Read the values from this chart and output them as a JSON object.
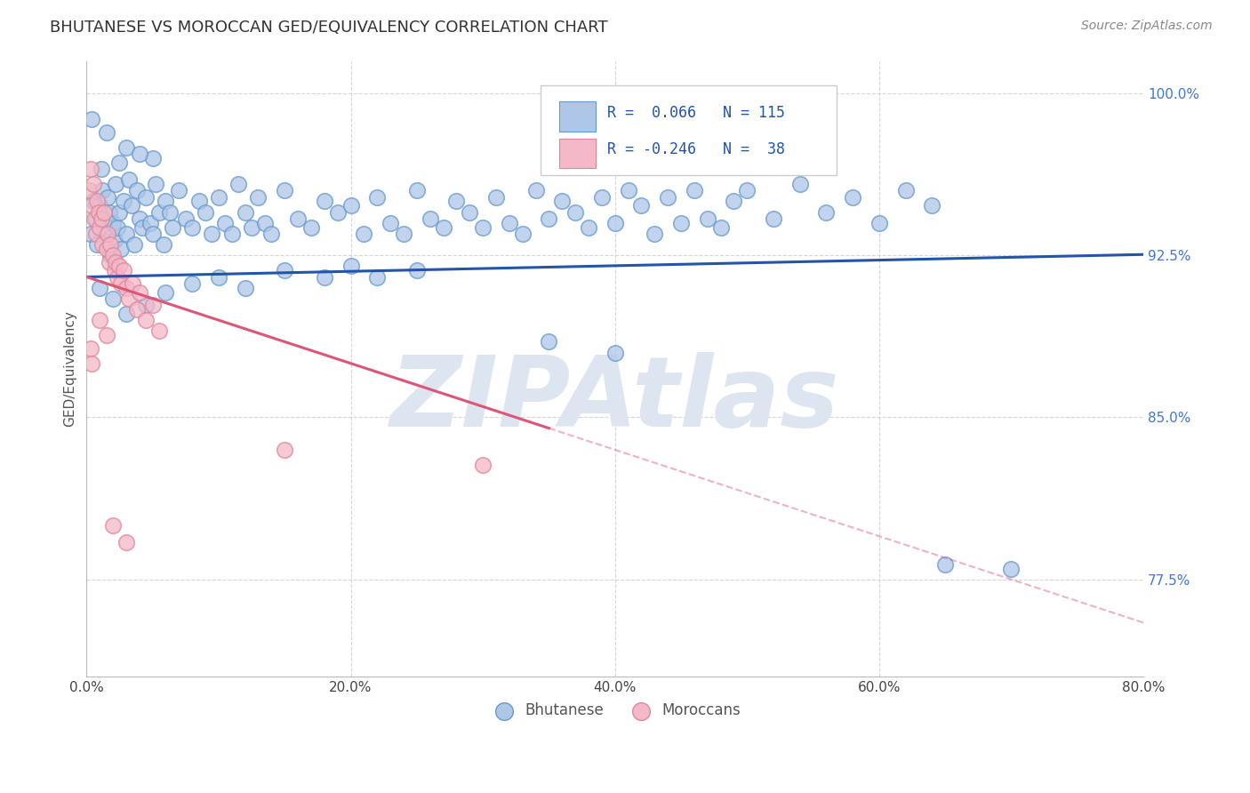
{
  "title": "BHUTANESE VS MOROCCAN GED/EQUIVALENCY CORRELATION CHART",
  "source": "Source: ZipAtlas.com",
  "ylabel": "GED/Equivalency",
  "xlim": [
    0.0,
    80.0
  ],
  "ylim": [
    73.0,
    101.5
  ],
  "yticks": [
    77.5,
    85.0,
    92.5,
    100.0
  ],
  "ytick_labels": [
    "77.5%",
    "85.0%",
    "92.5%",
    "100.0%"
  ],
  "xticks": [
    0.0,
    20.0,
    40.0,
    60.0,
    80.0
  ],
  "xtick_labels": [
    "0.0%",
    "20.0%",
    "40.0%",
    "60.0%",
    "80.0%"
  ],
  "blue_color": "#aec6e8",
  "blue_edge": "#6699cc",
  "pink_color": "#f4b8c8",
  "pink_edge": "#dd8899",
  "trend_blue": "#2255aa",
  "trend_pink": "#dd5577",
  "background": "#ffffff",
  "grid_color": "#cccccc",
  "watermark": "ZIPAtlas",
  "watermark_color": "#dde6f0",
  "legend_box_color": "#f5f5f5",
  "legend_border": "#cccccc",
  "blue_scatter": [
    [
      0.3,
      93.5
    ],
    [
      0.5,
      95.0
    ],
    [
      0.7,
      94.2
    ],
    [
      0.8,
      93.0
    ],
    [
      1.0,
      94.8
    ],
    [
      1.1,
      96.5
    ],
    [
      1.2,
      95.5
    ],
    [
      1.3,
      94.0
    ],
    [
      1.5,
      93.5
    ],
    [
      1.6,
      95.2
    ],
    [
      1.7,
      94.5
    ],
    [
      1.8,
      92.5
    ],
    [
      2.0,
      94.0
    ],
    [
      2.1,
      93.2
    ],
    [
      2.2,
      95.8
    ],
    [
      2.3,
      93.8
    ],
    [
      2.5,
      94.5
    ],
    [
      2.6,
      92.8
    ],
    [
      2.8,
      95.0
    ],
    [
      3.0,
      93.5
    ],
    [
      3.2,
      96.0
    ],
    [
      3.4,
      94.8
    ],
    [
      3.6,
      93.0
    ],
    [
      3.8,
      95.5
    ],
    [
      4.0,
      94.2
    ],
    [
      4.2,
      93.8
    ],
    [
      4.5,
      95.2
    ],
    [
      4.8,
      94.0
    ],
    [
      5.0,
      93.5
    ],
    [
      5.2,
      95.8
    ],
    [
      5.5,
      94.5
    ],
    [
      5.8,
      93.0
    ],
    [
      6.0,
      95.0
    ],
    [
      6.3,
      94.5
    ],
    [
      6.5,
      93.8
    ],
    [
      7.0,
      95.5
    ],
    [
      7.5,
      94.2
    ],
    [
      8.0,
      93.8
    ],
    [
      8.5,
      95.0
    ],
    [
      9.0,
      94.5
    ],
    [
      9.5,
      93.5
    ],
    [
      10.0,
      95.2
    ],
    [
      10.5,
      94.0
    ],
    [
      11.0,
      93.5
    ],
    [
      11.5,
      95.8
    ],
    [
      12.0,
      94.5
    ],
    [
      12.5,
      93.8
    ],
    [
      13.0,
      95.2
    ],
    [
      13.5,
      94.0
    ],
    [
      14.0,
      93.5
    ],
    [
      15.0,
      95.5
    ],
    [
      16.0,
      94.2
    ],
    [
      17.0,
      93.8
    ],
    [
      18.0,
      95.0
    ],
    [
      19.0,
      94.5
    ],
    [
      20.0,
      94.8
    ],
    [
      21.0,
      93.5
    ],
    [
      22.0,
      95.2
    ],
    [
      23.0,
      94.0
    ],
    [
      24.0,
      93.5
    ],
    [
      25.0,
      95.5
    ],
    [
      26.0,
      94.2
    ],
    [
      27.0,
      93.8
    ],
    [
      28.0,
      95.0
    ],
    [
      29.0,
      94.5
    ],
    [
      30.0,
      93.8
    ],
    [
      31.0,
      95.2
    ],
    [
      32.0,
      94.0
    ],
    [
      33.0,
      93.5
    ],
    [
      34.0,
      95.5
    ],
    [
      35.0,
      94.2
    ],
    [
      36.0,
      95.0
    ],
    [
      37.0,
      94.5
    ],
    [
      38.0,
      93.8
    ],
    [
      39.0,
      95.2
    ],
    [
      40.0,
      94.0
    ],
    [
      41.0,
      95.5
    ],
    [
      42.0,
      94.8
    ],
    [
      43.0,
      93.5
    ],
    [
      44.0,
      95.2
    ],
    [
      45.0,
      94.0
    ],
    [
      46.0,
      95.5
    ],
    [
      47.0,
      94.2
    ],
    [
      48.0,
      93.8
    ],
    [
      49.0,
      95.0
    ],
    [
      50.0,
      95.5
    ],
    [
      52.0,
      94.2
    ],
    [
      54.0,
      95.8
    ],
    [
      56.0,
      94.5
    ],
    [
      58.0,
      95.2
    ],
    [
      60.0,
      94.0
    ],
    [
      62.0,
      95.5
    ],
    [
      64.0,
      94.8
    ],
    [
      0.4,
      98.8
    ],
    [
      1.5,
      98.2
    ],
    [
      3.0,
      97.5
    ],
    [
      5.0,
      97.0
    ],
    [
      2.5,
      96.8
    ],
    [
      4.0,
      97.2
    ],
    [
      65.0,
      78.2
    ],
    [
      70.0,
      78.0
    ],
    [
      1.0,
      91.0
    ],
    [
      2.0,
      90.5
    ],
    [
      3.0,
      89.8
    ],
    [
      4.5,
      90.2
    ],
    [
      6.0,
      90.8
    ],
    [
      8.0,
      91.2
    ],
    [
      10.0,
      91.5
    ],
    [
      12.0,
      91.0
    ],
    [
      15.0,
      91.8
    ],
    [
      18.0,
      91.5
    ],
    [
      20.0,
      92.0
    ],
    [
      22.0,
      91.5
    ],
    [
      25.0,
      91.8
    ],
    [
      35.0,
      88.5
    ],
    [
      40.0,
      88.0
    ]
  ],
  "pink_scatter": [
    [
      0.2,
      95.5
    ],
    [
      0.3,
      96.5
    ],
    [
      0.4,
      94.8
    ],
    [
      0.5,
      95.8
    ],
    [
      0.6,
      94.2
    ],
    [
      0.7,
      93.5
    ],
    [
      0.8,
      95.0
    ],
    [
      0.9,
      94.5
    ],
    [
      1.0,
      93.8
    ],
    [
      1.1,
      94.2
    ],
    [
      1.2,
      93.0
    ],
    [
      1.3,
      94.5
    ],
    [
      1.5,
      92.8
    ],
    [
      1.6,
      93.5
    ],
    [
      1.7,
      92.2
    ],
    [
      1.8,
      93.0
    ],
    [
      2.0,
      92.5
    ],
    [
      2.1,
      91.8
    ],
    [
      2.2,
      92.2
    ],
    [
      2.3,
      91.5
    ],
    [
      2.5,
      92.0
    ],
    [
      2.6,
      91.2
    ],
    [
      2.8,
      91.8
    ],
    [
      3.0,
      91.0
    ],
    [
      3.2,
      90.5
    ],
    [
      3.5,
      91.2
    ],
    [
      3.8,
      90.0
    ],
    [
      4.0,
      90.8
    ],
    [
      4.5,
      89.5
    ],
    [
      5.0,
      90.2
    ],
    [
      5.5,
      89.0
    ],
    [
      1.0,
      89.5
    ],
    [
      1.5,
      88.8
    ],
    [
      0.3,
      88.2
    ],
    [
      0.4,
      87.5
    ],
    [
      15.0,
      83.5
    ],
    [
      30.0,
      82.8
    ],
    [
      2.0,
      80.0
    ],
    [
      3.0,
      79.2
    ]
  ]
}
